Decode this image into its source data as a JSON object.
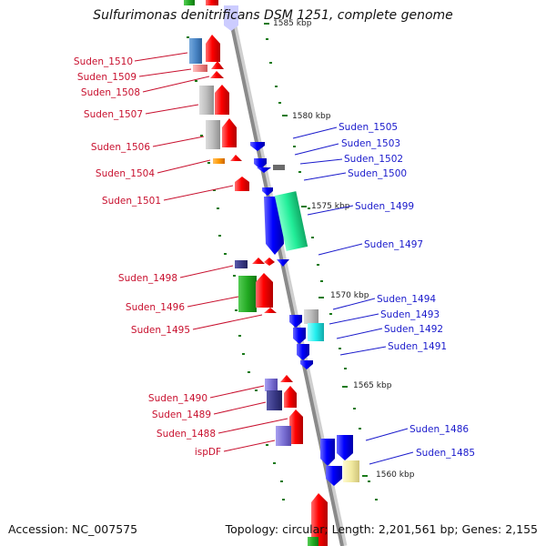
{
  "title": "Sulfurimonas denitrificans DSM 1251, complete genome",
  "footer": {
    "accession": "Accession: NC_007575",
    "summary": "Topology: circular; Length: 2,201,561 bp; Genes: 2,155"
  },
  "scale_labels": [
    "1585 kbp",
    "1580 kbp",
    "1575 kbp",
    "1570 kbp",
    "1565 kbp",
    "1560 kbp"
  ],
  "left_genes": [
    "Suden_1510",
    "Suden_1509",
    "Suden_1508",
    "Suden_1507",
    "Suden_1506",
    "Suden_1504",
    "Suden_1501",
    "Suden_1498",
    "Suden_1496",
    "Suden_1495",
    "Suden_1490",
    "Suden_1489",
    "Suden_1488",
    "ispDF"
  ],
  "right_genes": [
    "Suden_1505",
    "Suden_1503",
    "Suden_1502",
    "Suden_1500",
    "Suden_1499",
    "Suden_1497",
    "Suden_1494",
    "Suden_1493",
    "Suden_1492",
    "Suden_1491",
    "Suden_1486",
    "Suden_1485"
  ],
  "colors": {
    "forward_strand": "#ff0000",
    "reverse_strand": "#0000ff",
    "left_label": "#c8102e",
    "right_label": "#1a1acc",
    "backbone": "#9a9a9a",
    "tick": "#1a7a1a"
  }
}
